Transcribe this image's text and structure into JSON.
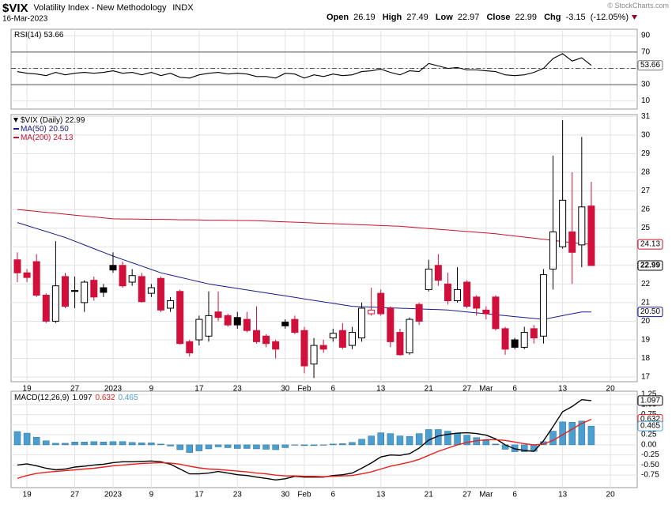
{
  "header": {
    "symbol": "$VIX",
    "name": "Volatility Index - New Methodology",
    "exchange": "INDX",
    "date": "16-Mar-2023",
    "watermark": "© StockCharts.com",
    "quote": {
      "open_label": "Open",
      "high_label": "High",
      "low_label": "Low",
      "close_label": "Close",
      "change_label": "Chg",
      "change": -3.15,
      "change_pct_label": "(-12.05%)"
    }
  },
  "chart_data": [
    {
      "type": "line",
      "ylim": [
        0,
        98
      ],
      "yticks": [
        10,
        30,
        50,
        70,
        90
      ],
      "grid": true,
      "levels": [
        30,
        70
      ],
      "dashed_levels": [
        50
      ],
      "series": [
        {
          "name": "RSI(14)",
          "color": "#000000",
          "values": [
            46,
            44,
            43,
            41,
            45,
            42,
            44,
            45,
            44,
            45,
            47,
            44,
            45,
            42,
            45,
            41,
            44,
            39,
            38,
            42,
            44,
            45,
            43,
            44,
            43,
            40,
            40,
            38,
            44,
            43,
            38,
            42,
            40,
            43,
            41,
            42,
            46,
            47,
            49,
            45,
            42,
            47,
            46,
            56,
            53,
            50,
            51,
            48,
            48,
            47,
            46,
            42,
            41,
            42,
            45,
            50,
            62,
            68,
            59,
            63,
            53.66
          ]
        }
      ]
    },
    {
      "type": "candlestick",
      "name": "$VIX (Daily)",
      "up_color": "#000000",
      "down_color": "#d0103a",
      "grid": true,
      "ylim": [
        16.75,
        31.1
      ],
      "yticks": [
        17,
        18,
        19,
        20,
        21,
        22,
        23,
        24,
        25,
        26,
        27,
        28,
        29,
        30,
        31
      ],
      "xlim": [
        -0.66,
        64.8
      ],
      "xticks": [
        {
          "value": 1,
          "label": "19"
        },
        {
          "value": 6,
          "label": "27"
        },
        {
          "value": 10,
          "label": "2023"
        },
        {
          "value": 14,
          "label": "9"
        },
        {
          "value": 19,
          "label": "17"
        },
        {
          "value": 23,
          "label": "23"
        },
        {
          "value": 28,
          "label": "30"
        },
        {
          "value": 30,
          "label": "Feb"
        },
        {
          "value": 33,
          "label": "6"
        },
        {
          "value": 38,
          "label": "13"
        },
        {
          "value": 43,
          "label": "21"
        },
        {
          "value": 47,
          "label": "27"
        },
        {
          "value": 49,
          "label": "Mar"
        },
        {
          "value": 52,
          "label": "6"
        },
        {
          "value": 57,
          "label": "13"
        },
        {
          "value": 62,
          "label": "20"
        }
      ],
      "open": [
        23.3,
        22.6,
        23.2,
        21.4,
        20.0,
        22.4,
        21.65,
        21.0,
        22.2,
        21.8,
        23.0,
        23.0,
        22.1,
        22.4,
        21.5,
        22.3,
        20.7,
        21.6,
        18.9,
        19.0,
        19.2,
        20.5,
        20.3,
        20.2,
        20.1,
        19.5,
        19.2,
        18.9,
        19.95,
        20.1,
        19.5,
        17.7,
        18.7,
        19.1,
        19.5,
        18.7,
        19.1,
        20.4,
        21.5,
        20.7,
        19.4,
        18.3,
        20.9,
        21.7,
        23.0,
        22.0,
        21.1,
        22.1,
        21.3,
        20.6,
        21.3,
        19.6,
        19.0,
        18.6,
        19.6,
        19.2,
        22.8,
        24.0,
        24.8,
        24.1,
        26.19
      ],
      "high": [
        23.7,
        22.8,
        23.6,
        21.5,
        24.3,
        22.6,
        22.4,
        22.2,
        22.4,
        22.0,
        23.7,
        23.2,
        22.8,
        22.6,
        22.0,
        22.4,
        21.3,
        21.7,
        19.0,
        20.3,
        21.6,
        21.6,
        20.4,
        20.5,
        20.5,
        20.8,
        19.3,
        19.0,
        20.1,
        20.3,
        19.7,
        19.1,
        19.0,
        19.6,
        19.9,
        19.7,
        21.0,
        21.8,
        21.7,
        20.8,
        19.6,
        20.2,
        21.0,
        23.3,
        23.6,
        22.6,
        22.9,
        22.2,
        21.4,
        20.8,
        21.4,
        19.7,
        19.1,
        19.7,
        19.8,
        22.8,
        28.9,
        30.8,
        28.0,
        29.9,
        27.49
      ],
      "low": [
        22.1,
        22.1,
        21.3,
        19.9,
        19.9,
        20.7,
        20.7,
        20.5,
        21.1,
        21.3,
        22.6,
        21.8,
        21.9,
        21.0,
        21.3,
        20.5,
        20.5,
        18.75,
        18.1,
        18.7,
        18.9,
        20.0,
        19.7,
        19.6,
        19.4,
        18.8,
        18.6,
        18.0,
        19.6,
        19.3,
        17.2,
        16.95,
        18.3,
        18.9,
        18.5,
        18.5,
        18.9,
        20.3,
        20.3,
        18.6,
        18.15,
        18.2,
        19.8,
        21.6,
        21.9,
        20.9,
        21.0,
        20.7,
        20.3,
        20.1,
        19.5,
        18.2,
        18.5,
        18.5,
        18.8,
        18.8,
        21.7,
        23.9,
        22.0,
        22.9,
        22.97
      ],
      "close": [
        22.6,
        22.35,
        21.4,
        20.0,
        21.9,
        20.8,
        21.6,
        22.1,
        21.3,
        21.55,
        22.75,
        21.9,
        22.45,
        21.05,
        21.8,
        20.6,
        21.1,
        18.8,
        18.3,
        20.1,
        20.3,
        20.2,
        19.8,
        19.8,
        19.5,
        18.9,
        18.8,
        18.5,
        19.75,
        19.4,
        17.6,
        18.7,
        18.5,
        19.35,
        18.6,
        19.4,
        20.7,
        20.6,
        20.4,
        18.9,
        18.2,
        20.1,
        20.0,
        22.8,
        22.2,
        21.1,
        21.7,
        20.8,
        20.7,
        20.4,
        19.6,
        18.5,
        18.6,
        19.4,
        19.1,
        22.5,
        24.8,
        26.5,
        23.7,
        26.14,
        22.99
      ],
      "series": [
        {
          "name": "MA(50)",
          "color": "#1a1a8c",
          "values": [
            25.3,
            25.14,
            24.98,
            24.82,
            24.66,
            24.5,
            24.3,
            24.1,
            23.9,
            23.7,
            23.5,
            23.32,
            23.14,
            22.96,
            22.78,
            22.6,
            22.48,
            22.36,
            22.24,
            22.12,
            22.0,
            21.92,
            21.84,
            21.76,
            21.68,
            21.6,
            21.52,
            21.44,
            21.36,
            21.28,
            21.2,
            21.12,
            21.04,
            20.96,
            20.88,
            20.8,
            20.78,
            20.76,
            20.74,
            20.72,
            20.7,
            20.68,
            20.66,
            20.64,
            20.62,
            20.6,
            20.55,
            20.5,
            20.45,
            20.4,
            20.35,
            20.3,
            20.25,
            20.2,
            20.15,
            20.1,
            20.2,
            20.3,
            20.4,
            20.5,
            20.5
          ],
          "value_labels": [
            null,
            null,
            null,
            null,
            null,
            null,
            null,
            null,
            null,
            null,
            null,
            null,
            null,
            null,
            null,
            null,
            null,
            null,
            null,
            null,
            null,
            null,
            null,
            null,
            null,
            null,
            null,
            null,
            null,
            null,
            null,
            null,
            null,
            null,
            null,
            null,
            null,
            null,
            null,
            null,
            null,
            null,
            null,
            null,
            null,
            null,
            null,
            null,
            null,
            null,
            null,
            null,
            null,
            null,
            null,
            null,
            null,
            null,
            null,
            null,
            "20.50"
          ]
        },
        {
          "name": "MA(200)",
          "color": "#c8102e",
          "values": [
            26.0,
            25.95,
            25.9,
            25.85,
            25.8,
            25.75,
            25.7,
            25.65,
            25.6,
            25.55,
            25.5,
            25.49,
            25.49,
            25.48,
            25.47,
            25.47,
            25.46,
            25.45,
            25.45,
            25.44,
            25.43,
            25.43,
            25.42,
            25.41,
            25.41,
            25.4,
            25.38,
            25.36,
            25.34,
            25.32,
            25.3,
            25.28,
            25.26,
            25.24,
            25.22,
            25.2,
            25.18,
            25.16,
            25.14,
            25.12,
            25.1,
            25.06,
            25.02,
            24.98,
            24.94,
            24.9,
            24.86,
            24.82,
            24.78,
            24.74,
            24.7,
            24.64,
            24.58,
            24.52,
            24.46,
            24.4,
            24.34,
            24.28,
            24.22,
            24.17,
            24.13
          ]
        }
      ]
    },
    {
      "type": "combo",
      "legend": "MACD(12,26,9)",
      "grid": true,
      "ylim": [
        -1.06,
        1.33
      ],
      "yticks": [
        -0.75,
        {
          "value": -0.5,
          "label": "-0.50"
        },
        -0.25,
        {
          "value": 0,
          "label": "0.00"
        },
        0.25,
        {
          "value": 0.5,
          "label": "0.50"
        },
        0.75,
        {
          "value": 1,
          "label": "1.00"
        },
        1.25
      ],
      "xlim": [
        -0.66,
        64.8
      ],
      "xticks": [
        {
          "value": 1,
          "label": "19"
        },
        {
          "value": 6,
          "label": "27"
        },
        {
          "value": 10,
          "label": "2023"
        },
        {
          "value": 14,
          "label": "9"
        },
        {
          "value": 19,
          "label": "17"
        },
        {
          "value": 23,
          "label": "23"
        },
        {
          "value": 28,
          "label": "30"
        },
        {
          "value": 30,
          "label": "Feb"
        },
        {
          "value": 33,
          "label": "6"
        },
        {
          "value": 38,
          "label": "13"
        },
        {
          "value": 43,
          "label": "21"
        },
        {
          "value": 47,
          "label": "27"
        },
        {
          "value": 49,
          "label": "Mar"
        },
        {
          "value": 52,
          "label": "6"
        },
        {
          "value": 57,
          "label": "13"
        },
        {
          "value": 62,
          "label": "20"
        }
      ],
      "series": [
        {
          "type": "line",
          "color": "#000000",
          "values": [
            -0.5,
            -0.47,
            -0.52,
            -0.58,
            -0.62,
            -0.6,
            -0.55,
            -0.53,
            -0.5,
            -0.48,
            -0.44,
            -0.42,
            -0.42,
            -0.41,
            -0.4,
            -0.42,
            -0.48,
            -0.6,
            -0.72,
            -0.72,
            -0.7,
            -0.66,
            -0.7,
            -0.74,
            -0.76,
            -0.8,
            -0.83,
            -0.87,
            -0.84,
            -0.78,
            -0.8,
            -0.8,
            -0.8,
            -0.76,
            -0.74,
            -0.7,
            -0.58,
            -0.45,
            -0.3,
            -0.25,
            -0.26,
            -0.22,
            -0.08,
            0.12,
            0.22,
            0.26,
            0.29,
            0.3,
            0.28,
            0.24,
            0.15,
            0.0,
            -0.1,
            -0.14,
            -0.16,
            0.1,
            0.45,
            0.82,
            0.95,
            1.12,
            1.097
          ]
        },
        {
          "type": "line",
          "color": "#e8201f",
          "values": [
            -0.83,
            -0.76,
            -0.71,
            -0.68,
            -0.66,
            -0.64,
            -0.62,
            -0.6,
            -0.58,
            -0.55,
            -0.52,
            -0.5,
            -0.48,
            -0.46,
            -0.45,
            -0.44,
            -0.45,
            -0.48,
            -0.53,
            -0.57,
            -0.6,
            -0.61,
            -0.63,
            -0.65,
            -0.67,
            -0.7,
            -0.72,
            -0.75,
            -0.77,
            -0.77,
            -0.78,
            -0.78,
            -0.79,
            -0.78,
            -0.77,
            -0.76,
            -0.72,
            -0.67,
            -0.6,
            -0.53,
            -0.48,
            -0.43,
            -0.36,
            -0.26,
            -0.16,
            -0.08,
            0.0,
            0.06,
            0.1,
            0.13,
            0.13,
            0.11,
            0.07,
            0.03,
            0.0,
            0.02,
            0.11,
            0.25,
            0.39,
            0.53,
            0.632
          ]
        },
        {
          "type": "bar",
          "color": "#4a9fd0",
          "values": [
            0.33,
            0.29,
            0.19,
            0.1,
            0.04,
            0.04,
            0.07,
            0.07,
            0.08,
            0.07,
            0.08,
            0.08,
            0.06,
            0.05,
            0.05,
            0.02,
            -0.03,
            -0.12,
            -0.19,
            -0.15,
            -0.1,
            -0.05,
            -0.07,
            -0.09,
            -0.09,
            -0.1,
            -0.11,
            -0.12,
            -0.07,
            -0.01,
            -0.02,
            -0.02,
            -0.01,
            0.02,
            0.03,
            0.06,
            0.14,
            0.22,
            0.3,
            0.28,
            0.22,
            0.21,
            0.28,
            0.38,
            0.38,
            0.34,
            0.29,
            0.24,
            0.18,
            0.11,
            0.02,
            -0.11,
            -0.17,
            -0.17,
            -0.16,
            0.08,
            0.34,
            0.57,
            0.56,
            0.59,
            0.465
          ]
        }
      ]
    }
  ]
}
